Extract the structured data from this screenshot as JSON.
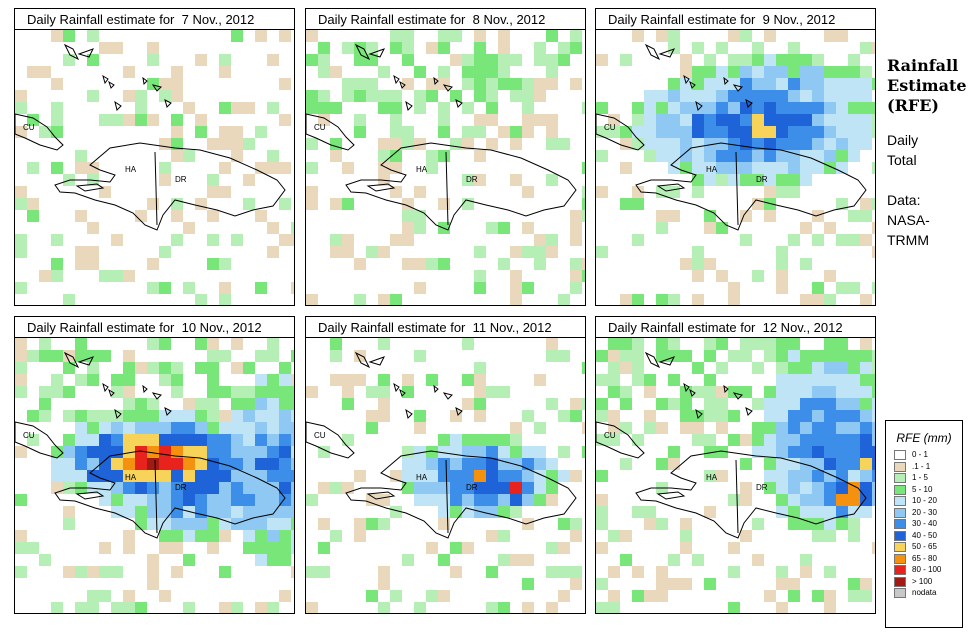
{
  "panels": [
    {
      "title": "Daily Rainfall estimate for  7 Nov., 2012",
      "labels": {
        "cu": "CU",
        "ha": "HA",
        "dr": "DR"
      }
    },
    {
      "title": "Daily Rainfall estimate for  8 Nov., 2012",
      "labels": {
        "cu": "CU",
        "ha": "HA",
        "dr": "DR"
      }
    },
    {
      "title": "Daily Rainfall estimate for  9 Nov., 2012",
      "labels": {
        "cu": "CU",
        "ha": "HA",
        "dr": "DR"
      }
    },
    {
      "title": "Daily Rainfall estimate for  10 Nov., 2012",
      "labels": {
        "cu": "CU",
        "ha": "HA",
        "dr": "DR"
      }
    },
    {
      "title": "Daily Rainfall estimate for  11 Nov., 2012",
      "labels": {
        "cu": "CU",
        "ha": "HA",
        "dr": "DR"
      }
    },
    {
      "title": "Daily Rainfall estimate for  12 Nov., 2012",
      "labels": {
        "cu": "CU",
        "ha": "HA",
        "dr": "DR"
      }
    }
  ],
  "side": {
    "title_line1": "Rainfall",
    "title_line2": "Estimate",
    "title_line3": "(RFE)",
    "daily_line1": "Daily",
    "daily_line2": "Total",
    "data_line1": "Data:",
    "data_line2": "NASA-",
    "data_line3": "TRMM"
  },
  "legend": {
    "title": "RFE (mm)",
    "items": [
      {
        "label": "0 - 1",
        "color": "#ffffff"
      },
      {
        "label": ".1 - 1",
        "color": "#ead8bd"
      },
      {
        "label": "1 - 5",
        "color": "#b5efb5"
      },
      {
        "label": "5 - 10",
        "color": "#78e678"
      },
      {
        "label": "10 - 20",
        "color": "#bfe4f5"
      },
      {
        "label": "20 - 30",
        "color": "#8ec8f3"
      },
      {
        "label": "30 - 40",
        "color": "#3d8ee8"
      },
      {
        "label": "40 - 50",
        "color": "#1e63d8"
      },
      {
        "label": "50 - 65",
        "color": "#f7d35a"
      },
      {
        "label": "65 - 80",
        "color": "#f4920f"
      },
      {
        "label": "80 - 100",
        "color": "#e8231d"
      },
      {
        "label": "> 100",
        "color": "#a31a15"
      },
      {
        "label": "nodata",
        "color": "#c8c8c8"
      }
    ]
  }
}
